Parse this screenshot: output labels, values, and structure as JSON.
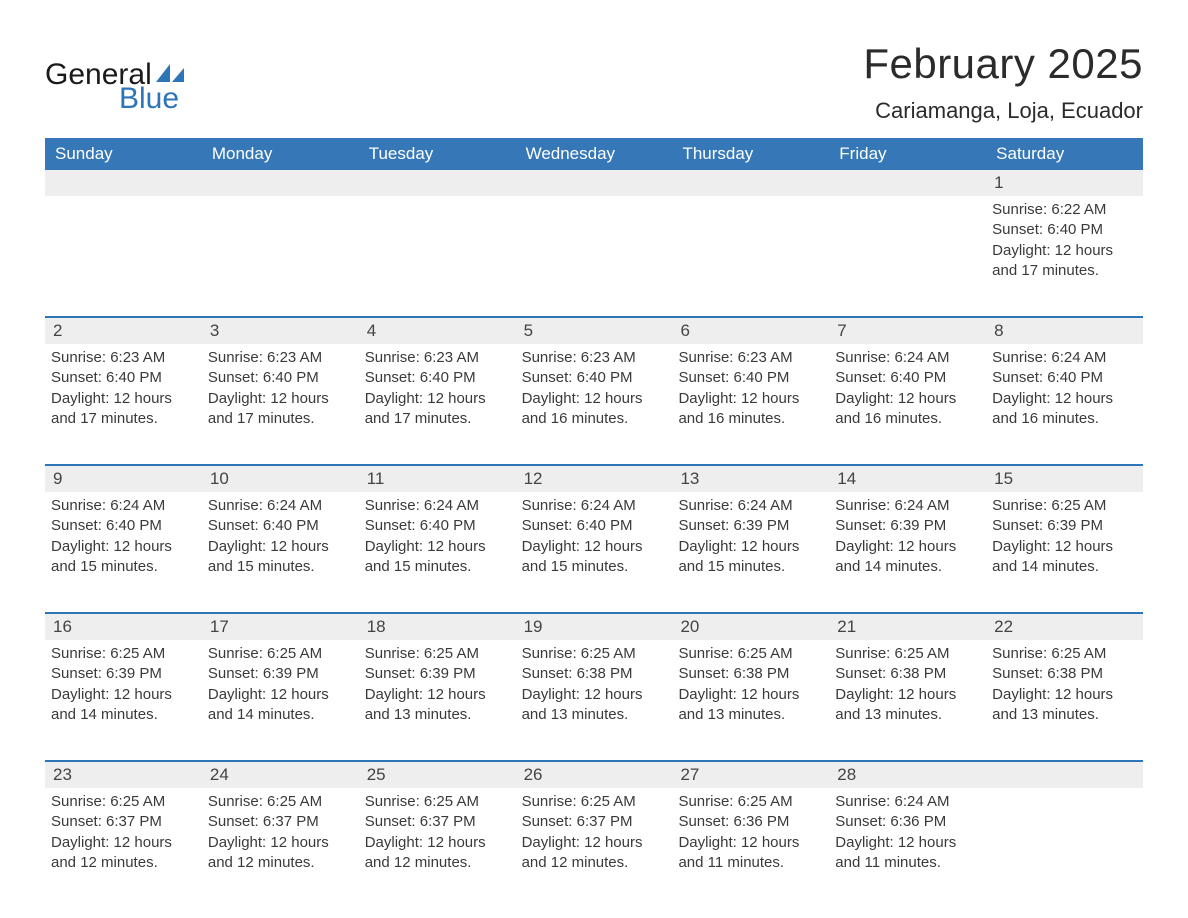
{
  "logo": {
    "word1": "General",
    "word2": "Blue",
    "brand_color": "#2d74b8",
    "text_color": "#1a1a1a"
  },
  "title": {
    "month": "February 2025",
    "location": "Cariamanga, Loja, Ecuador"
  },
  "colors": {
    "header_bg": "#3577b7",
    "header_text": "#ffffff",
    "row_divider": "#2d74b8",
    "daynum_bg": "#eeeeee",
    "body_text": "#3a3a3a",
    "page_bg": "#ffffff"
  },
  "weekdays": [
    "Sunday",
    "Monday",
    "Tuesday",
    "Wednesday",
    "Thursday",
    "Friday",
    "Saturday"
  ],
  "weeks": [
    [
      {
        "num": "",
        "sunrise": "",
        "sunset": "",
        "daylight": ""
      },
      {
        "num": "",
        "sunrise": "",
        "sunset": "",
        "daylight": ""
      },
      {
        "num": "",
        "sunrise": "",
        "sunset": "",
        "daylight": ""
      },
      {
        "num": "",
        "sunrise": "",
        "sunset": "",
        "daylight": ""
      },
      {
        "num": "",
        "sunrise": "",
        "sunset": "",
        "daylight": ""
      },
      {
        "num": "",
        "sunrise": "",
        "sunset": "",
        "daylight": ""
      },
      {
        "num": "1",
        "sunrise": "Sunrise: 6:22 AM",
        "sunset": "Sunset: 6:40 PM",
        "daylight": "Daylight: 12 hours and 17 minutes."
      }
    ],
    [
      {
        "num": "2",
        "sunrise": "Sunrise: 6:23 AM",
        "sunset": "Sunset: 6:40 PM",
        "daylight": "Daylight: 12 hours and 17 minutes."
      },
      {
        "num": "3",
        "sunrise": "Sunrise: 6:23 AM",
        "sunset": "Sunset: 6:40 PM",
        "daylight": "Daylight: 12 hours and 17 minutes."
      },
      {
        "num": "4",
        "sunrise": "Sunrise: 6:23 AM",
        "sunset": "Sunset: 6:40 PM",
        "daylight": "Daylight: 12 hours and 17 minutes."
      },
      {
        "num": "5",
        "sunrise": "Sunrise: 6:23 AM",
        "sunset": "Sunset: 6:40 PM",
        "daylight": "Daylight: 12 hours and 16 minutes."
      },
      {
        "num": "6",
        "sunrise": "Sunrise: 6:23 AM",
        "sunset": "Sunset: 6:40 PM",
        "daylight": "Daylight: 12 hours and 16 minutes."
      },
      {
        "num": "7",
        "sunrise": "Sunrise: 6:24 AM",
        "sunset": "Sunset: 6:40 PM",
        "daylight": "Daylight: 12 hours and 16 minutes."
      },
      {
        "num": "8",
        "sunrise": "Sunrise: 6:24 AM",
        "sunset": "Sunset: 6:40 PM",
        "daylight": "Daylight: 12 hours and 16 minutes."
      }
    ],
    [
      {
        "num": "9",
        "sunrise": "Sunrise: 6:24 AM",
        "sunset": "Sunset: 6:40 PM",
        "daylight": "Daylight: 12 hours and 15 minutes."
      },
      {
        "num": "10",
        "sunrise": "Sunrise: 6:24 AM",
        "sunset": "Sunset: 6:40 PM",
        "daylight": "Daylight: 12 hours and 15 minutes."
      },
      {
        "num": "11",
        "sunrise": "Sunrise: 6:24 AM",
        "sunset": "Sunset: 6:40 PM",
        "daylight": "Daylight: 12 hours and 15 minutes."
      },
      {
        "num": "12",
        "sunrise": "Sunrise: 6:24 AM",
        "sunset": "Sunset: 6:40 PM",
        "daylight": "Daylight: 12 hours and 15 minutes."
      },
      {
        "num": "13",
        "sunrise": "Sunrise: 6:24 AM",
        "sunset": "Sunset: 6:39 PM",
        "daylight": "Daylight: 12 hours and 15 minutes."
      },
      {
        "num": "14",
        "sunrise": "Sunrise: 6:24 AM",
        "sunset": "Sunset: 6:39 PM",
        "daylight": "Daylight: 12 hours and 14 minutes."
      },
      {
        "num": "15",
        "sunrise": "Sunrise: 6:25 AM",
        "sunset": "Sunset: 6:39 PM",
        "daylight": "Daylight: 12 hours and 14 minutes."
      }
    ],
    [
      {
        "num": "16",
        "sunrise": "Sunrise: 6:25 AM",
        "sunset": "Sunset: 6:39 PM",
        "daylight": "Daylight: 12 hours and 14 minutes."
      },
      {
        "num": "17",
        "sunrise": "Sunrise: 6:25 AM",
        "sunset": "Sunset: 6:39 PM",
        "daylight": "Daylight: 12 hours and 14 minutes."
      },
      {
        "num": "18",
        "sunrise": "Sunrise: 6:25 AM",
        "sunset": "Sunset: 6:39 PM",
        "daylight": "Daylight: 12 hours and 13 minutes."
      },
      {
        "num": "19",
        "sunrise": "Sunrise: 6:25 AM",
        "sunset": "Sunset: 6:38 PM",
        "daylight": "Daylight: 12 hours and 13 minutes."
      },
      {
        "num": "20",
        "sunrise": "Sunrise: 6:25 AM",
        "sunset": "Sunset: 6:38 PM",
        "daylight": "Daylight: 12 hours and 13 minutes."
      },
      {
        "num": "21",
        "sunrise": "Sunrise: 6:25 AM",
        "sunset": "Sunset: 6:38 PM",
        "daylight": "Daylight: 12 hours and 13 minutes."
      },
      {
        "num": "22",
        "sunrise": "Sunrise: 6:25 AM",
        "sunset": "Sunset: 6:38 PM",
        "daylight": "Daylight: 12 hours and 13 minutes."
      }
    ],
    [
      {
        "num": "23",
        "sunrise": "Sunrise: 6:25 AM",
        "sunset": "Sunset: 6:37 PM",
        "daylight": "Daylight: 12 hours and 12 minutes."
      },
      {
        "num": "24",
        "sunrise": "Sunrise: 6:25 AM",
        "sunset": "Sunset: 6:37 PM",
        "daylight": "Daylight: 12 hours and 12 minutes."
      },
      {
        "num": "25",
        "sunrise": "Sunrise: 6:25 AM",
        "sunset": "Sunset: 6:37 PM",
        "daylight": "Daylight: 12 hours and 12 minutes."
      },
      {
        "num": "26",
        "sunrise": "Sunrise: 6:25 AM",
        "sunset": "Sunset: 6:37 PM",
        "daylight": "Daylight: 12 hours and 12 minutes."
      },
      {
        "num": "27",
        "sunrise": "Sunrise: 6:25 AM",
        "sunset": "Sunset: 6:36 PM",
        "daylight": "Daylight: 12 hours and 11 minutes."
      },
      {
        "num": "28",
        "sunrise": "Sunrise: 6:24 AM",
        "sunset": "Sunset: 6:36 PM",
        "daylight": "Daylight: 12 hours and 11 minutes."
      },
      {
        "num": "",
        "sunrise": "",
        "sunset": "",
        "daylight": ""
      }
    ]
  ]
}
